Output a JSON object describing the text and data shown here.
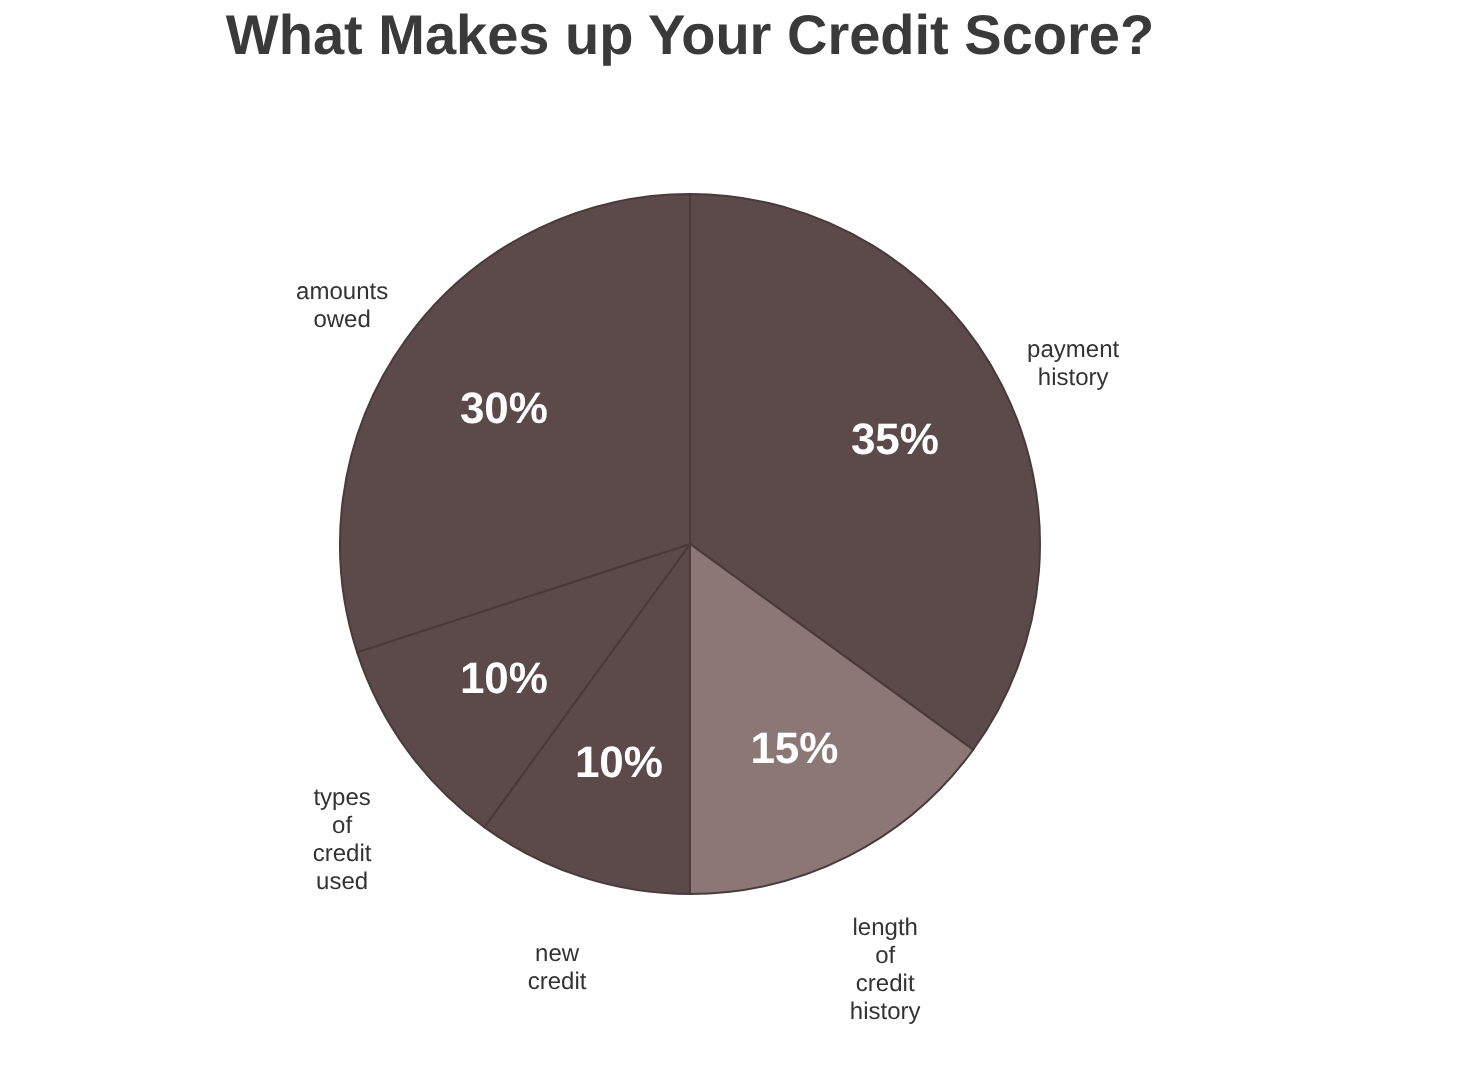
{
  "chart_data": {
    "type": "pie",
    "title": "What Makes up Your Credit Score?",
    "categories": [
      "payment history",
      "length of credit history",
      "new credit",
      "types of credit used",
      "amounts owed"
    ],
    "values": [
      35,
      15,
      10,
      10,
      30
    ],
    "colors": [
      "#5c4949",
      "#8c7777",
      "#5c4949",
      "#5c4949",
      "#5c4949"
    ],
    "value_labels": [
      "35%",
      "15%",
      "10%",
      "10%",
      "30%"
    ]
  }
}
